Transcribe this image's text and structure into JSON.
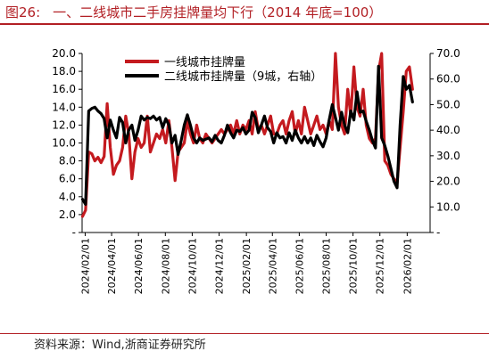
{
  "title": {
    "number": "图26:",
    "text": "一、二线城市二手房挂牌量均下行（2014 年底=100）"
  },
  "source": "资料来源：Wind,浙商证券研究所",
  "chart_data": {
    "type": "line",
    "title": "",
    "xlabel": "",
    "ylabel_left": "",
    "ylabel_right": "",
    "left_axis": {
      "min": 0,
      "max": 20,
      "step": 2,
      "zero_label": "-",
      "tick_labels": [
        "-",
        "2.0",
        "4.0",
        "6.0",
        "8.0",
        "10.0",
        "12.0",
        "14.0",
        "16.0",
        "18.0",
        "20.0"
      ]
    },
    "right_axis": {
      "min": 0,
      "max": 70,
      "step": 10,
      "zero_label": "-",
      "tick_labels": [
        "-",
        "10.0",
        "20.0",
        "30.0",
        "40.0",
        "50.0",
        "60.0",
        "70.0"
      ]
    },
    "x_ticks": [
      "2024/02/01",
      "2024/04/01",
      "2024/06/01",
      "2024/08/01",
      "2024/10/01",
      "2024/12/01",
      "2025/02/01",
      "2025/04/01",
      "2025/06/01",
      "2025/08/01",
      "2025/10/01",
      "2025/12/01",
      "2026/02/01"
    ],
    "x_start": "2024/01/25",
    "x_end": "2026/03/25",
    "legend_position": "top-left",
    "series": [
      {
        "name": "一线城市挂牌量",
        "axis": "left",
        "color": "#c41a1f",
        "points": [
          [
            "2024/01/26",
            1.8
          ],
          [
            "2024/02/02",
            2.5
          ],
          [
            "2024/02/09",
            9.0
          ],
          [
            "2024/02/16",
            8.8
          ],
          [
            "2024/02/23",
            8.0
          ],
          [
            "2024/03/01",
            8.4
          ],
          [
            "2024/03/08",
            7.8
          ],
          [
            "2024/03/15",
            8.5
          ],
          [
            "2024/03/22",
            14.4
          ],
          [
            "2024/03/29",
            9.5
          ],
          [
            "2024/04/05",
            6.5
          ],
          [
            "2024/04/12",
            7.5
          ],
          [
            "2024/04/19",
            8.0
          ],
          [
            "2024/04/26",
            9.5
          ],
          [
            "2024/05/03",
            13.0
          ],
          [
            "2024/05/10",
            11.0
          ],
          [
            "2024/05/17",
            6.0
          ],
          [
            "2024/05/24",
            9.0
          ],
          [
            "2024/05/31",
            10.5
          ],
          [
            "2024/06/07",
            9.5
          ],
          [
            "2024/06/14",
            10.0
          ],
          [
            "2024/06/21",
            13.0
          ],
          [
            "2024/06/28",
            9.0
          ],
          [
            "2024/07/05",
            10.0
          ],
          [
            "2024/07/12",
            11.0
          ],
          [
            "2024/07/19",
            10.5
          ],
          [
            "2024/07/26",
            11.5
          ],
          [
            "2024/08/02",
            10.0
          ],
          [
            "2024/08/09",
            12.5
          ],
          [
            "2024/08/16",
            9.5
          ],
          [
            "2024/08/23",
            5.8
          ],
          [
            "2024/08/30",
            9.0
          ],
          [
            "2024/09/06",
            9.5
          ],
          [
            "2024/09/13",
            10.0
          ],
          [
            "2024/09/20",
            12.5
          ],
          [
            "2024/09/27",
            11.0
          ],
          [
            "2024/10/04",
            10.0
          ],
          [
            "2024/10/11",
            12.0
          ],
          [
            "2024/10/18",
            10.5
          ],
          [
            "2024/10/25",
            10.0
          ],
          [
            "2024/11/01",
            11.0
          ],
          [
            "2024/11/08",
            10.5
          ],
          [
            "2024/11/15",
            10.0
          ],
          [
            "2024/11/22",
            10.5
          ],
          [
            "2024/11/29",
            11.0
          ],
          [
            "2024/12/06",
            11.5
          ],
          [
            "2024/12/13",
            11.0
          ],
          [
            "2024/12/20",
            11.5
          ],
          [
            "2024/12/27",
            12.0
          ],
          [
            "2025/01/03",
            11.0
          ],
          [
            "2025/01/10",
            12.5
          ],
          [
            "2025/01/17",
            11.0
          ],
          [
            "2025/01/24",
            12.0
          ],
          [
            "2025/01/31",
            11.5
          ],
          [
            "2025/02/07",
            12.5
          ],
          [
            "2025/02/14",
            11.0
          ],
          [
            "2025/02/21",
            13.5
          ],
          [
            "2025/02/28",
            11.5
          ],
          [
            "2025/03/07",
            12.0
          ],
          [
            "2025/03/14",
            11.0
          ],
          [
            "2025/03/21",
            12.0
          ],
          [
            "2025/03/28",
            13.0
          ],
          [
            "2025/04/04",
            11.0
          ],
          [
            "2025/04/11",
            11.0
          ],
          [
            "2025/04/18",
            12.0
          ],
          [
            "2025/04/25",
            12.5
          ],
          [
            "2025/05/02",
            11.0
          ],
          [
            "2025/05/09",
            12.5
          ],
          [
            "2025/05/16",
            13.5
          ],
          [
            "2025/05/23",
            11.0
          ],
          [
            "2025/05/30",
            12.5
          ],
          [
            "2025/06/06",
            11.0
          ],
          [
            "2025/06/13",
            14.0
          ],
          [
            "2025/06/20",
            12.5
          ],
          [
            "2025/06/27",
            11.0
          ],
          [
            "2025/07/04",
            12.0
          ],
          [
            "2025/07/11",
            13.0
          ],
          [
            "2025/07/18",
            11.5
          ],
          [
            "2025/07/25",
            12.0
          ],
          [
            "2025/08/01",
            11.0
          ],
          [
            "2025/08/08",
            12.5
          ],
          [
            "2025/08/15",
            11.5
          ],
          [
            "2025/08/22",
            20.0
          ],
          [
            "2025/08/29",
            14.0
          ],
          [
            "2025/09/05",
            12.0
          ],
          [
            "2025/09/12",
            11.0
          ],
          [
            "2025/09/19",
            16.0
          ],
          [
            "2025/09/26",
            13.0
          ],
          [
            "2025/10/03",
            18.5
          ],
          [
            "2025/10/10",
            14.0
          ],
          [
            "2025/10/17",
            13.0
          ],
          [
            "2025/10/24",
            16.0
          ],
          [
            "2025/10/31",
            12.0
          ],
          [
            "2025/11/07",
            10.5
          ],
          [
            "2025/11/14",
            10.0
          ],
          [
            "2025/11/21",
            10.5
          ],
          [
            "2025/11/28",
            18.0
          ],
          [
            "2025/12/05",
            20.0
          ],
          [
            "2025/12/12",
            8.0
          ],
          [
            "2025/12/19",
            7.5
          ],
          [
            "2025/12/26",
            6.5
          ],
          [
            "2026/01/02",
            6.0
          ],
          [
            "2026/01/09",
            5.5
          ],
          [
            "2026/01/16",
            9.5
          ],
          [
            "2026/01/23",
            13.5
          ],
          [
            "2026/01/30",
            18.0
          ],
          [
            "2026/02/06",
            18.5
          ],
          [
            "2026/02/13",
            16.0
          ]
        ]
      },
      {
        "name": "二线城市挂牌量（9城，右轴）",
        "axis": "right",
        "color": "#000000",
        "points": [
          [
            "2024/01/26",
            13.0
          ],
          [
            "2024/02/02",
            11.0
          ],
          [
            "2024/02/09",
            47.5
          ],
          [
            "2024/02/16",
            48.5
          ],
          [
            "2024/02/23",
            49.0
          ],
          [
            "2024/03/01",
            47.5
          ],
          [
            "2024/03/08",
            46.5
          ],
          [
            "2024/03/15",
            44.5
          ],
          [
            "2024/03/22",
            37.0
          ],
          [
            "2024/03/29",
            44.0
          ],
          [
            "2024/04/05",
            40.0
          ],
          [
            "2024/04/12",
            37.0
          ],
          [
            "2024/04/19",
            45.0
          ],
          [
            "2024/04/26",
            43.0
          ],
          [
            "2024/05/03",
            35.0
          ],
          [
            "2024/05/10",
            40.0
          ],
          [
            "2024/05/17",
            42.0
          ],
          [
            "2024/05/24",
            36.0
          ],
          [
            "2024/05/31",
            40.0
          ],
          [
            "2024/06/07",
            45.5
          ],
          [
            "2024/06/14",
            44.0
          ],
          [
            "2024/06/21",
            45.0
          ],
          [
            "2024/06/28",
            44.5
          ],
          [
            "2024/07/05",
            45.5
          ],
          [
            "2024/07/12",
            44.0
          ],
          [
            "2024/07/19",
            45.0
          ],
          [
            "2024/07/26",
            41.0
          ],
          [
            "2024/08/02",
            44.5
          ],
          [
            "2024/08/09",
            42.0
          ],
          [
            "2024/08/16",
            35.0
          ],
          [
            "2024/08/23",
            38.0
          ],
          [
            "2024/08/30",
            30.5
          ],
          [
            "2024/09/06",
            36.0
          ],
          [
            "2024/09/13",
            42.0
          ],
          [
            "2024/09/20",
            46.0
          ],
          [
            "2024/09/27",
            42.0
          ],
          [
            "2024/10/04",
            37.0
          ],
          [
            "2024/10/11",
            35.0
          ],
          [
            "2024/10/18",
            37.0
          ],
          [
            "2024/10/25",
            36.0
          ],
          [
            "2024/11/01",
            36.5
          ],
          [
            "2024/11/08",
            37.0
          ],
          [
            "2024/11/15",
            35.5
          ],
          [
            "2024/11/22",
            38.0
          ],
          [
            "2024/11/29",
            36.0
          ],
          [
            "2024/12/06",
            35.0
          ],
          [
            "2024/12/13",
            38.0
          ],
          [
            "2024/12/20",
            42.0
          ],
          [
            "2024/12/27",
            39.0
          ],
          [
            "2025/01/03",
            37.0
          ],
          [
            "2025/01/10",
            40.0
          ],
          [
            "2025/01/17",
            39.5
          ],
          [
            "2025/01/24",
            41.0
          ],
          [
            "2025/01/31",
            38.5
          ],
          [
            "2025/02/07",
            40.0
          ],
          [
            "2025/02/14",
            47.0
          ],
          [
            "2025/02/21",
            45.0
          ],
          [
            "2025/02/28",
            39.0
          ],
          [
            "2025/03/07",
            42.0
          ],
          [
            "2025/03/14",
            45.5
          ],
          [
            "2025/03/21",
            41.0
          ],
          [
            "2025/03/28",
            39.5
          ],
          [
            "2025/04/04",
            35.0
          ],
          [
            "2025/04/11",
            39.0
          ],
          [
            "2025/04/18",
            37.0
          ],
          [
            "2025/04/25",
            37.5
          ],
          [
            "2025/05/02",
            35.0
          ],
          [
            "2025/05/09",
            39.0
          ],
          [
            "2025/05/16",
            36.0
          ],
          [
            "2025/05/23",
            40.0
          ],
          [
            "2025/05/30",
            37.0
          ],
          [
            "2025/06/06",
            35.0
          ],
          [
            "2025/06/13",
            37.5
          ],
          [
            "2025/06/20",
            35.0
          ],
          [
            "2025/06/27",
            37.0
          ],
          [
            "2025/07/04",
            34.0
          ],
          [
            "2025/07/11",
            38.0
          ],
          [
            "2025/07/18",
            35.5
          ],
          [
            "2025/07/25",
            33.5
          ],
          [
            "2025/08/01",
            37.0
          ],
          [
            "2025/08/08",
            44.0
          ],
          [
            "2025/08/15",
            50.0
          ],
          [
            "2025/08/22",
            45.0
          ],
          [
            "2025/08/29",
            40.0
          ],
          [
            "2025/09/05",
            47.0
          ],
          [
            "2025/09/12",
            42.0
          ],
          [
            "2025/09/19",
            39.0
          ],
          [
            "2025/09/26",
            47.5
          ],
          [
            "2025/10/03",
            44.0
          ],
          [
            "2025/10/10",
            55.0
          ],
          [
            "2025/10/17",
            47.0
          ],
          [
            "2025/10/24",
            47.5
          ],
          [
            "2025/10/31",
            43.5
          ],
          [
            "2025/11/07",
            40.0
          ],
          [
            "2025/11/14",
            36.0
          ],
          [
            "2025/11/21",
            33.0
          ],
          [
            "2025/11/28",
            65.0
          ],
          [
            "2025/12/05",
            37.0
          ],
          [
            "2025/12/12",
            34.0
          ],
          [
            "2025/12/19",
            30.0
          ],
          [
            "2025/12/26",
            25.0
          ],
          [
            "2026/01/02",
            20.0
          ],
          [
            "2026/01/09",
            17.5
          ],
          [
            "2026/01/16",
            42.0
          ],
          [
            "2026/01/23",
            61.0
          ],
          [
            "2026/01/30",
            56.0
          ],
          [
            "2026/02/06",
            57.5
          ],
          [
            "2026/02/13",
            51.0
          ]
        ]
      }
    ]
  }
}
